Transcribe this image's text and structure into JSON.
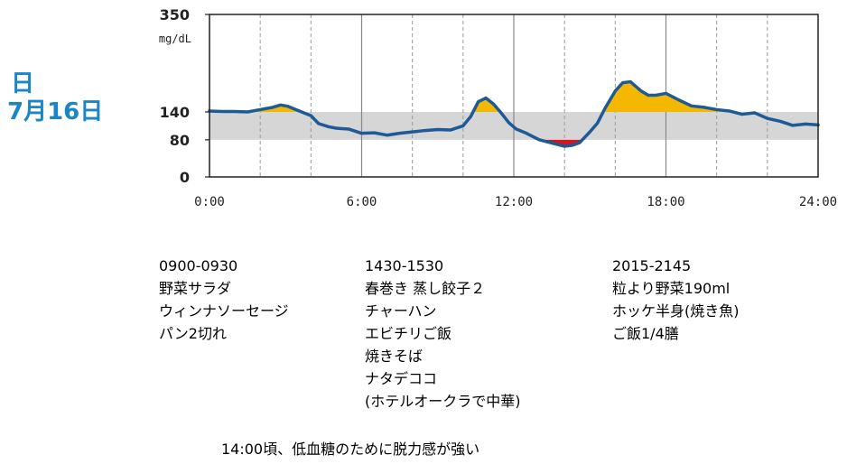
{
  "day": {
    "line1": "日",
    "line2": "7月16日"
  },
  "colors": {
    "line": "#1d5a96",
    "high_fill": "#f5b800",
    "low_fill": "#d8121f",
    "band": "#d6d6d6"
  },
  "chart_data": {
    "type": "area",
    "title": "",
    "xlabel": "",
    "ylabel": "mg/dL",
    "xlim": [
      0,
      24
    ],
    "ylim": [
      0,
      350
    ],
    "yticks": [
      0,
      80,
      140,
      350
    ],
    "ytick_labels": [
      "0",
      "80",
      "140",
      "350"
    ],
    "xticks": [
      0,
      6,
      12,
      18,
      24
    ],
    "xtick_labels": [
      "0:00",
      "6:00",
      "12:00",
      "18:00",
      "24:00"
    ],
    "target_range": [
      80,
      140
    ],
    "grid": "vertical lines every 2 hours, dashed; solid at 6-hour marks",
    "series": [
      {
        "x": [
          0,
          0.5,
          1,
          1.5,
          2,
          2.5,
          2.8,
          3.1,
          3.5,
          4,
          4.3,
          4.7,
          5,
          5.5,
          6,
          6.5,
          7,
          7.5,
          8,
          8.5,
          9,
          9.5,
          10,
          10.3,
          10.6,
          10.9,
          11.2,
          11.5,
          11.8,
          12.1,
          12.5,
          13,
          13.5,
          14,
          14.3,
          14.6,
          15,
          15.3,
          15.6,
          16,
          16.3,
          16.6,
          17,
          17.3,
          17.6,
          18,
          18.5,
          19,
          19.5,
          20,
          20.5,
          21,
          21.5,
          22,
          22.5,
          23,
          23.5,
          24
        ],
        "y": [
          142,
          141,
          141,
          140,
          145,
          150,
          155,
          152,
          143,
          132,
          115,
          108,
          105,
          103,
          94,
          95,
          90,
          94,
          97,
          100,
          102,
          101,
          110,
          130,
          162,
          170,
          157,
          138,
          117,
          103,
          94,
          80,
          73,
          66,
          68,
          74,
          97,
          116,
          148,
          185,
          203,
          205,
          186,
          176,
          176,
          180,
          166,
          153,
          150,
          145,
          142,
          135,
          138,
          126,
          120,
          111,
          114,
          112
        ]
      }
    ]
  },
  "meals": [
    {
      "time": "0900-0930",
      "items": [
        "野菜サラダ",
        "ウィンナソーセージ",
        "パン2切れ"
      ]
    },
    {
      "time": "1430-1530",
      "items": [
        "春巻き 蒸し餃子２",
        "チャーハン",
        "エビチリご飯",
        "焼きそば",
        "ナタデココ",
        "(ホテルオークラで中華)"
      ]
    },
    {
      "time": "2015-2145",
      "items": [
        "粒より野菜190ml",
        "ホッケ半身(焼き魚)",
        "ご飯1/4膳"
      ]
    }
  ],
  "note": "14:00頃、低血糖のために脱力感が強い"
}
